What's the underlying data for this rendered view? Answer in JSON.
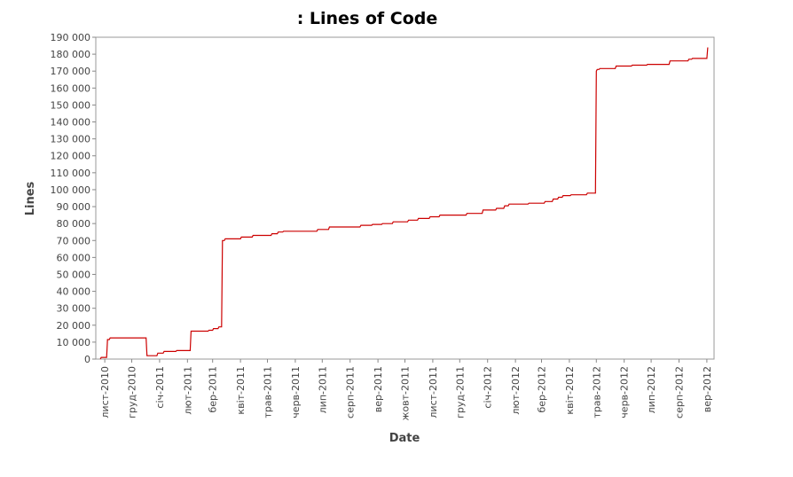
{
  "chart_data": {
    "type": "line",
    "title": ": Lines of Code",
    "xlabel": "Date",
    "ylabel": "Lines",
    "ylim": [
      0,
      190000
    ],
    "y_ticks": [
      "0",
      "10 000",
      "20 000",
      "30 000",
      "40 000",
      "50 000",
      "60 000",
      "70 000",
      "80 000",
      "90 000",
      "100 000",
      "110 000",
      "120 000",
      "130 000",
      "140 000",
      "150 000",
      "160 000",
      "170 000",
      "180 000",
      "190 000"
    ],
    "xlim": [
      "2010-10-22",
      "2012-09-09"
    ],
    "x_ticks": [
      {
        "date": "2010-11-01",
        "label": "лист-2010"
      },
      {
        "date": "2010-12-01",
        "label": "груд-2010"
      },
      {
        "date": "2011-01-01",
        "label": "січ-2011"
      },
      {
        "date": "2011-02-01",
        "label": "лют-2011"
      },
      {
        "date": "2011-03-01",
        "label": "бер-2011"
      },
      {
        "date": "2011-04-01",
        "label": "квіт-2011"
      },
      {
        "date": "2011-05-01",
        "label": "трав-2011"
      },
      {
        "date": "2011-06-01",
        "label": "черв-2011"
      },
      {
        "date": "2011-07-01",
        "label": "лип-2011"
      },
      {
        "date": "2011-08-01",
        "label": "серп-2011"
      },
      {
        "date": "2011-09-01",
        "label": "вер-2011"
      },
      {
        "date": "2011-10-01",
        "label": "жовт-2011"
      },
      {
        "date": "2011-11-01",
        "label": "лист-2011"
      },
      {
        "date": "2011-12-01",
        "label": "груд-2011"
      },
      {
        "date": "2012-01-01",
        "label": "січ-2012"
      },
      {
        "date": "2012-02-01",
        "label": "лют-2012"
      },
      {
        "date": "2012-03-01",
        "label": "бер-2012"
      },
      {
        "date": "2012-04-01",
        "label": "квіт-2012"
      },
      {
        "date": "2012-05-01",
        "label": "трав-2012"
      },
      {
        "date": "2012-06-01",
        "label": "черв-2012"
      },
      {
        "date": "2012-07-01",
        "label": "лип-2012"
      },
      {
        "date": "2012-08-01",
        "label": "серп-2012"
      },
      {
        "date": "2012-09-01",
        "label": "вер-2012"
      }
    ],
    "grid": false,
    "line_color": "#cc0000",
    "series": [
      {
        "step": true,
        "points": [
          [
            "2010-10-27",
            0
          ],
          [
            "2010-10-28",
            1000
          ],
          [
            "2010-11-03",
            1000
          ],
          [
            "2010-11-04",
            11500
          ],
          [
            "2010-11-06",
            11500
          ],
          [
            "2010-11-07",
            12500
          ],
          [
            "2010-12-17",
            12500
          ],
          [
            "2010-12-18",
            2000
          ],
          [
            "2010-12-29",
            2000
          ],
          [
            "2010-12-30",
            3500
          ],
          [
            "2011-01-05",
            3500
          ],
          [
            "2011-01-06",
            4500
          ],
          [
            "2011-01-19",
            4500
          ],
          [
            "2011-01-20",
            5000
          ],
          [
            "2011-02-04",
            5000
          ],
          [
            "2011-02-05",
            16500
          ],
          [
            "2011-02-24",
            16500
          ],
          [
            "2011-02-25",
            17000
          ],
          [
            "2011-03-01",
            17000
          ],
          [
            "2011-03-02",
            18000
          ],
          [
            "2011-03-07",
            18000
          ],
          [
            "2011-03-08",
            19000
          ],
          [
            "2011-03-11",
            19000
          ],
          [
            "2011-03-12",
            70000
          ],
          [
            "2011-03-14",
            70000
          ],
          [
            "2011-03-15",
            71000
          ],
          [
            "2011-04-01",
            71000
          ],
          [
            "2011-04-02",
            72000
          ],
          [
            "2011-04-14",
            72000
          ],
          [
            "2011-04-15",
            73000
          ],
          [
            "2011-05-05",
            73000
          ],
          [
            "2011-05-06",
            74000
          ],
          [
            "2011-05-12",
            74000
          ],
          [
            "2011-05-13",
            75000
          ],
          [
            "2011-05-18",
            75000
          ],
          [
            "2011-05-19",
            75500
          ],
          [
            "2011-06-25",
            75500
          ],
          [
            "2011-06-26",
            76500
          ],
          [
            "2011-07-08",
            76500
          ],
          [
            "2011-07-09",
            78000
          ],
          [
            "2011-08-12",
            78000
          ],
          [
            "2011-08-13",
            79000
          ],
          [
            "2011-08-25",
            79000
          ],
          [
            "2011-08-26",
            79500
          ],
          [
            "2011-09-05",
            79500
          ],
          [
            "2011-09-06",
            80000
          ],
          [
            "2011-09-17",
            80000
          ],
          [
            "2011-09-18",
            81000
          ],
          [
            "2011-10-04",
            81000
          ],
          [
            "2011-10-05",
            82000
          ],
          [
            "2011-10-15",
            82000
          ],
          [
            "2011-10-16",
            83000
          ],
          [
            "2011-10-28",
            83000
          ],
          [
            "2011-10-29",
            84000
          ],
          [
            "2011-11-08",
            84000
          ],
          [
            "2011-11-09",
            85000
          ],
          [
            "2011-12-08",
            85000
          ],
          [
            "2011-12-09",
            86000
          ],
          [
            "2011-12-26",
            86000
          ],
          [
            "2011-12-27",
            88000
          ],
          [
            "2012-01-10",
            88000
          ],
          [
            "2012-01-11",
            89000
          ],
          [
            "2012-01-19",
            89000
          ],
          [
            "2012-01-20",
            90500
          ],
          [
            "2012-01-24",
            90500
          ],
          [
            "2012-01-25",
            91500
          ],
          [
            "2012-02-15",
            91500
          ],
          [
            "2012-02-16",
            92000
          ],
          [
            "2012-03-04",
            92000
          ],
          [
            "2012-03-05",
            93000
          ],
          [
            "2012-03-13",
            93000
          ],
          [
            "2012-03-14",
            94500
          ],
          [
            "2012-03-19",
            94500
          ],
          [
            "2012-03-20",
            95500
          ],
          [
            "2012-03-24",
            95500
          ],
          [
            "2012-03-25",
            96500
          ],
          [
            "2012-04-02",
            96500
          ],
          [
            "2012-04-03",
            97000
          ],
          [
            "2012-04-20",
            97000
          ],
          [
            "2012-04-21",
            98000
          ],
          [
            "2012-04-30",
            98000
          ],
          [
            "2012-05-01",
            170000
          ],
          [
            "2012-05-02",
            171000
          ],
          [
            "2012-05-04",
            171000
          ],
          [
            "2012-05-05",
            171500
          ],
          [
            "2012-05-22",
            171500
          ],
          [
            "2012-05-23",
            173000
          ],
          [
            "2012-06-09",
            173000
          ],
          [
            "2012-06-10",
            173500
          ],
          [
            "2012-06-26",
            173500
          ],
          [
            "2012-06-27",
            174000
          ],
          [
            "2012-07-21",
            174000
          ],
          [
            "2012-07-22",
            176000
          ],
          [
            "2012-08-11",
            176000
          ],
          [
            "2012-08-12",
            177000
          ],
          [
            "2012-08-15",
            177000
          ],
          [
            "2012-08-16",
            177500
          ],
          [
            "2012-09-01",
            177500
          ],
          [
            "2012-09-02",
            184000
          ]
        ]
      }
    ]
  }
}
